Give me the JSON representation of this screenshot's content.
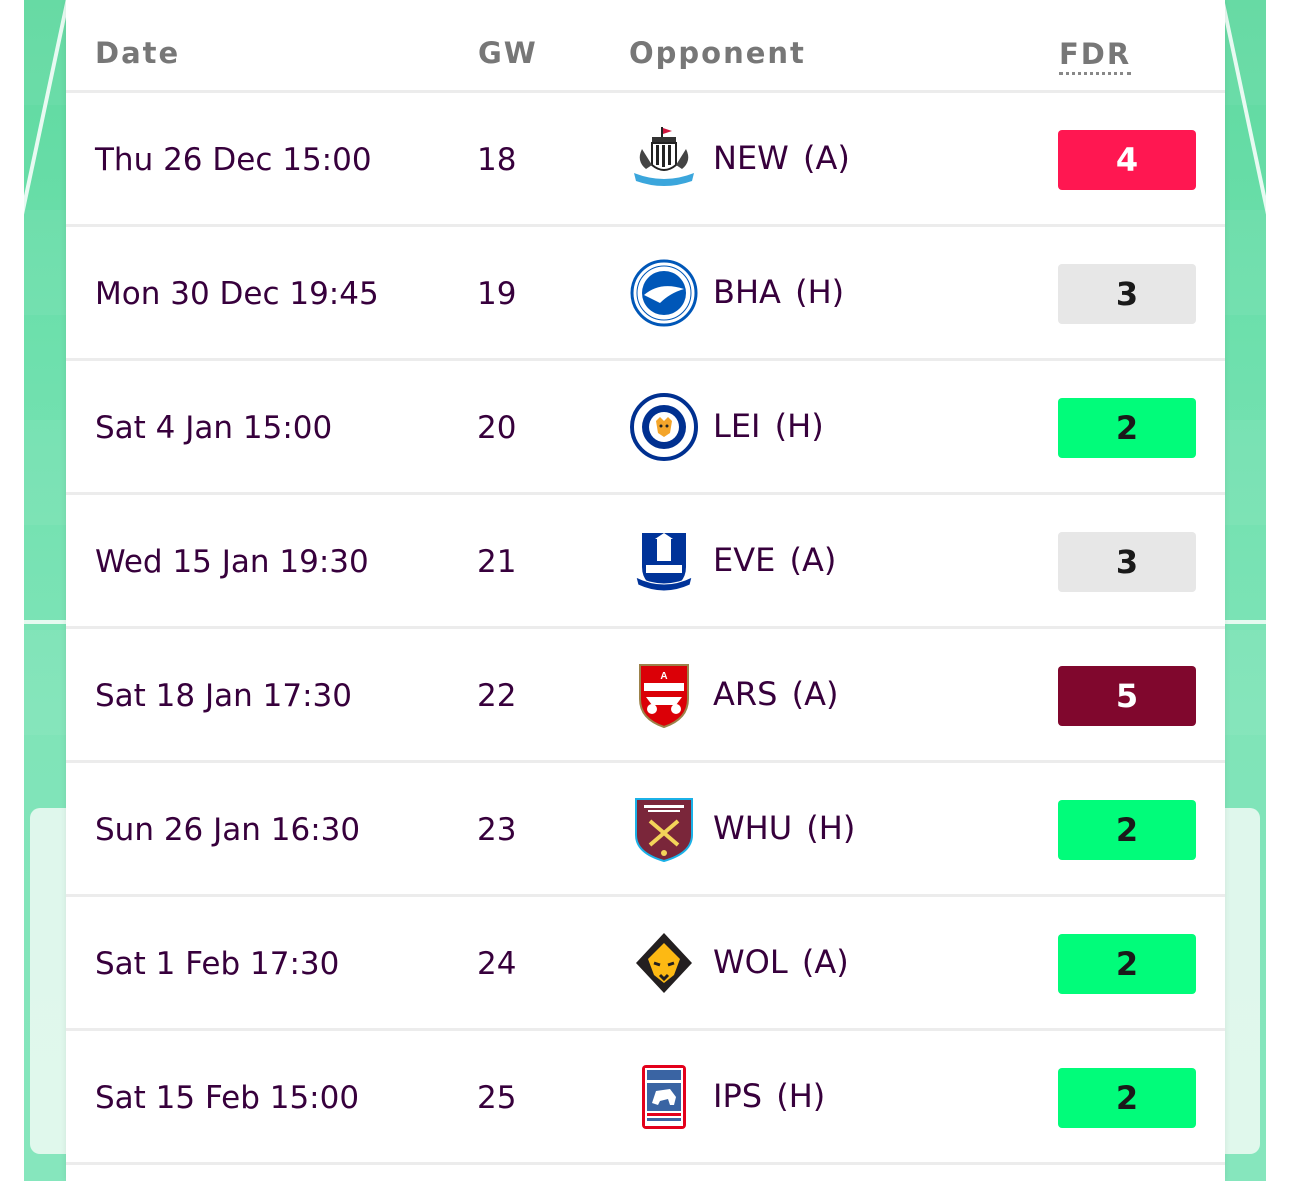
{
  "table": {
    "headers": {
      "date": "Date",
      "gw": "GW",
      "opponent": "Opponent",
      "fdr": "FDR"
    },
    "rows": [
      {
        "date": "Thu 26 Dec 15:00",
        "gw": "18",
        "team": "NEW",
        "venue": "(A)",
        "crest": "newcastle-crest-icon",
        "fdr": "4"
      },
      {
        "date": "Mon 30 Dec 19:45",
        "gw": "19",
        "team": "BHA",
        "venue": "(H)",
        "crest": "brighton-crest-icon",
        "fdr": "3"
      },
      {
        "date": "Sat 4 Jan 15:00",
        "gw": "20",
        "team": "LEI",
        "venue": "(H)",
        "crest": "leicester-crest-icon",
        "fdr": "2"
      },
      {
        "date": "Wed 15 Jan 19:30",
        "gw": "21",
        "team": "EVE",
        "venue": "(A)",
        "crest": "everton-crest-icon",
        "fdr": "3"
      },
      {
        "date": "Sat 18 Jan 17:30",
        "gw": "22",
        "team": "ARS",
        "venue": "(A)",
        "crest": "arsenal-crest-icon",
        "fdr": "5"
      },
      {
        "date": "Sun 26 Jan 16:30",
        "gw": "23",
        "team": "WHU",
        "venue": "(H)",
        "crest": "west-ham-crest-icon",
        "fdr": "2"
      },
      {
        "date": "Sat 1 Feb 17:30",
        "gw": "24",
        "team": "WOL",
        "venue": "(A)",
        "crest": "wolves-crest-icon",
        "fdr": "2"
      },
      {
        "date": "Sat 15 Feb 15:00",
        "gw": "25",
        "team": "IPS",
        "venue": "(H)",
        "crest": "ipswich-crest-icon",
        "fdr": "2"
      }
    ]
  },
  "fdr_colors": {
    "2": {
      "bg": "#01fc7a",
      "fg": "#1a1a1a"
    },
    "3": {
      "bg": "#e7e7e7",
      "fg": "#1a1a1a"
    },
    "4": {
      "bg": "#ff1751",
      "fg": "#ffffff"
    },
    "5": {
      "bg": "#80072d",
      "fg": "#ffffff"
    }
  },
  "colors": {
    "text": "#37003c",
    "header_text": "#777777",
    "pitch": "#6ee0ad"
  }
}
